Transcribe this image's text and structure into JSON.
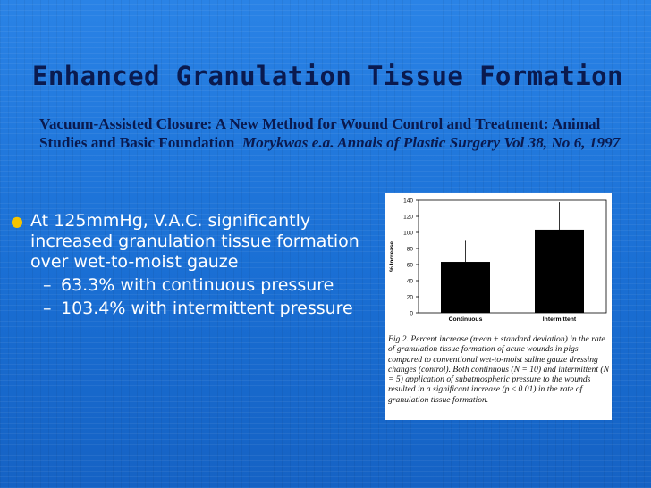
{
  "slide": {
    "title": "Enhanced Granulation Tissue Formation",
    "citation_main": "Vacuum-Assisted Closure: A New Method for Wound Control and Treatment: Animal Studies and Basic Foundation",
    "citation_ref": "Morykwas e.a. Annals of Plastic Surgery Vol 38, No 6, 1997"
  },
  "bullets": {
    "main": "At 125mmHg, V.A.C. significantly increased granulation tissue formation over wet-to-moist gauze",
    "sub1": "63.3% with continuous pressure",
    "sub2": "103.4% with intermittent pressure"
  },
  "chart_data": {
    "type": "bar",
    "categories": [
      "Continuous",
      "Intermittent"
    ],
    "values": [
      63.3,
      103.4
    ],
    "error_upper": [
      89,
      137
    ],
    "ylabel": "% Increase",
    "ylim": [
      0,
      140
    ],
    "yticks": [
      "0",
      "20",
      "40",
      "60",
      "80",
      "100",
      "120",
      "140"
    ],
    "bar_color": "#000000",
    "caption": "Fig 2. Percent increase (mean ± standard deviation) in the rate of granulation tissue formation of acute wounds in pigs compared to conventional wet-to-moist saline gauze dressing changes (control). Both continuous (N = 10) and intermittent (N = 5) application of subatmospheric pressure to the wounds resulted in a significant increase (p ≤ 0.01) in the rate of granulation tissue formation."
  },
  "colors": {
    "title": "#0a1a4f",
    "bullet_text": "#ffffff",
    "bullet_dot": "#f5c400"
  }
}
